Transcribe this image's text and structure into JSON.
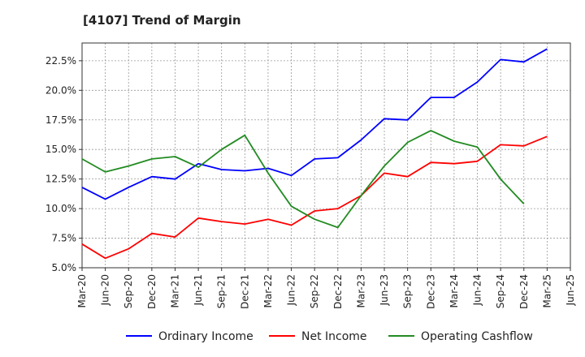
{
  "chart_data": {
    "type": "line",
    "title": "[4107]  Trend of Margin",
    "xlabel": "",
    "ylabel": "",
    "categories": [
      "Mar-20",
      "Jun-20",
      "Sep-20",
      "Dec-20",
      "Mar-21",
      "Jun-21",
      "Sep-21",
      "Dec-21",
      "Mar-22",
      "Jun-22",
      "Sep-22",
      "Dec-22",
      "Mar-23",
      "Jun-23",
      "Sep-23",
      "Dec-23",
      "Mar-24",
      "Jun-24",
      "Sep-24",
      "Dec-24",
      "Mar-25",
      "Jun-25"
    ],
    "ylim": [
      5.0,
      24.0
    ],
    "yticks": [
      5.0,
      7.5,
      10.0,
      12.5,
      15.0,
      17.5,
      20.0,
      22.5
    ],
    "ytick_labels": [
      "5.0%",
      "7.5%",
      "10.0%",
      "12.5%",
      "15.0%",
      "17.5%",
      "20.0%",
      "22.5%"
    ],
    "grid": true,
    "legend_position": "bottom",
    "series": [
      {
        "name": "Ordinary Income",
        "color": "#0000ff",
        "values": [
          11.8,
          10.8,
          11.8,
          12.7,
          12.5,
          13.8,
          13.3,
          13.2,
          13.4,
          12.8,
          14.2,
          14.3,
          15.8,
          17.6,
          17.5,
          19.4,
          19.4,
          20.7,
          22.6,
          22.4,
          23.5,
          null
        ]
      },
      {
        "name": "Net Income",
        "color": "#ff0000",
        "values": [
          7.0,
          5.8,
          6.6,
          7.9,
          7.6,
          9.2,
          8.9,
          8.7,
          9.1,
          8.6,
          9.8,
          10.0,
          11.1,
          13.0,
          12.7,
          13.9,
          13.8,
          14.0,
          15.4,
          15.3,
          16.1,
          null
        ]
      },
      {
        "name": "Operating Cashflow",
        "color": "#228b22",
        "values": [
          14.2,
          13.1,
          13.6,
          14.2,
          14.4,
          13.5,
          15.0,
          16.2,
          13.0,
          10.2,
          9.1,
          8.4,
          11.1,
          13.6,
          15.6,
          16.6,
          15.7,
          15.2,
          12.5,
          10.4,
          null,
          null
        ]
      }
    ]
  }
}
